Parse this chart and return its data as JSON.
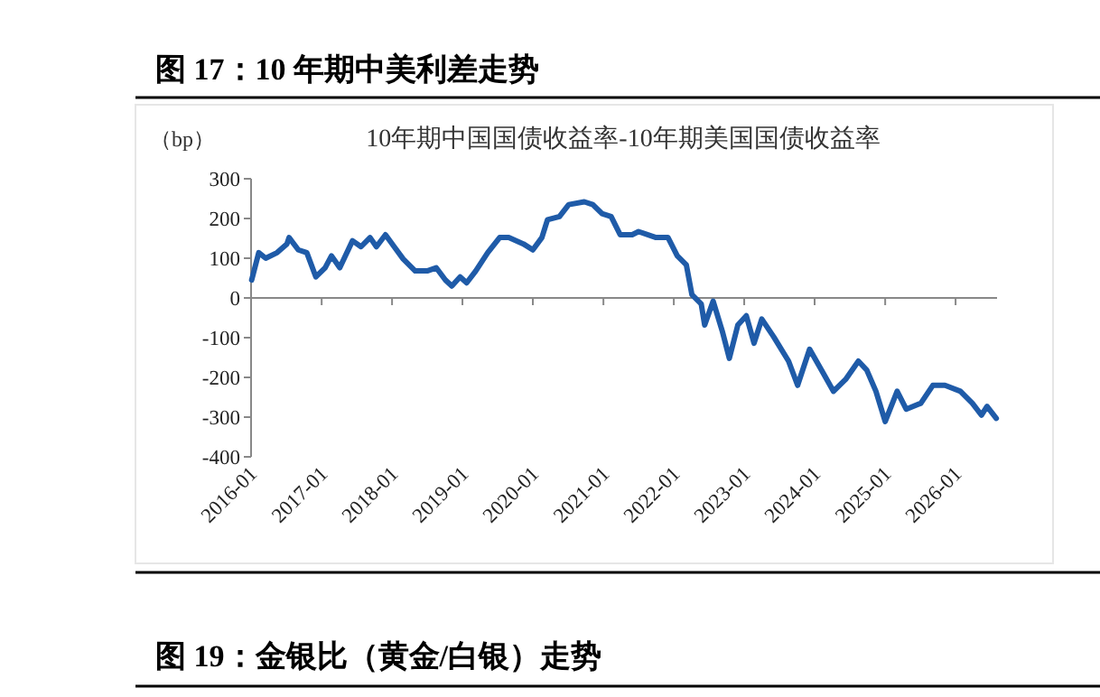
{
  "chart_data": {
    "type": "line",
    "title": "图 17：10 年期中美利差走势",
    "subtitle": "10年期中国国债收益率-10年期美国国债收益率",
    "ylabel": "（bp）",
    "annotations": [
      "图 19：金银比（黄金/白银）走势"
    ],
    "color": "#1f5ba8",
    "x": [
      "2016-01-04",
      "2016-02-10",
      "2016-03-17",
      "2016-05-15",
      "2016-07-05",
      "2016-07-16",
      "2016-09-02",
      "2016-10-16",
      "2016-12-02",
      "2017-01-19",
      "2017-02-21",
      "2017-04-05",
      "2017-06-10",
      "2017-07-24",
      "2017-09-09",
      "2017-10-12",
      "2017-11-28",
      "2018-01-12",
      "2018-02-28",
      "2018-05-01",
      "2018-07-02",
      "2018-08-18",
      "2018-10-05",
      "2018-11-07",
      "2018-12-20",
      "2019-01-23",
      "2019-03-11",
      "2019-05-12",
      "2019-07-13",
      "2019-08-29",
      "2019-11-13",
      "2020-01-01",
      "2020-02-17",
      "2020-03-17",
      "2020-05-18",
      "2020-07-05",
      "2020-09-24",
      "2020-11-07",
      "2020-12-25",
      "2021-02-10",
      "2021-03-29",
      "2021-05-30",
      "2021-07-02",
      "2021-10-01",
      "2021-12-02",
      "2022-01-19",
      "2022-03-07",
      "2022-04-05",
      "2022-05-23",
      "2022-06-10",
      "2022-07-24",
      "2022-09-09",
      "2022-10-16",
      "2022-11-29",
      "2023-01-12",
      "2023-02-21",
      "2023-04-02",
      "2023-06-03",
      "2023-08-19",
      "2023-10-05",
      "2023-12-06",
      "2024-02-06",
      "2024-04-08",
      "2024-06-10",
      "2024-08-15",
      "2024-09-28",
      "2024-11-14",
      "2025-01-01",
      "2025-03-04",
      "2025-04-20",
      "2025-07-05",
      "2025-09-05",
      "2025-11-07",
      "2026-01-26",
      "2026-03-29",
      "2026-05-15",
      "2026-06-13",
      "2026-07-31"
    ],
    "values": [
      45,
      114,
      100,
      114,
      136,
      152,
      121,
      114,
      53,
      76,
      106,
      76,
      144,
      129,
      152,
      129,
      159,
      129,
      98,
      68,
      68,
      76,
      45,
      30,
      53,
      38,
      68,
      114,
      152,
      152,
      136,
      121,
      152,
      197,
      205,
      235,
      242,
      235,
      212,
      205,
      159,
      159,
      167,
      152,
      152,
      106,
      83,
      8,
      -15,
      -68,
      -8,
      -83,
      -152,
      -68,
      -45,
      -114,
      -53,
      -98,
      -159,
      -220,
      -129,
      -182,
      -235,
      -205,
      -159,
      -182,
      -235,
      -311,
      -235,
      -280,
      -265,
      -220,
      -220,
      -235,
      -265,
      -295,
      -273,
      -303
    ],
    "xlim": [
      "2016-01-01",
      "2026-08-04"
    ],
    "xticks": [
      {
        "value": "2016-01",
        "label": "2016-01"
      },
      {
        "value": "2017-01",
        "label": "2017-01"
      },
      {
        "value": "2018-01",
        "label": "2018-01"
      },
      {
        "value": "2019-01",
        "label": "2019-01"
      },
      {
        "value": "2020-01",
        "label": "2020-01"
      },
      {
        "value": "2021-01",
        "label": "2021-01"
      },
      {
        "value": "2022-01",
        "label": "2022-01"
      },
      {
        "value": "2023-01",
        "label": "2023-01"
      },
      {
        "value": "2024-01",
        "label": "2024-01"
      },
      {
        "value": "2025-01",
        "label": "2025-01"
      },
      {
        "value": "2026-01",
        "label": "2026-01"
      }
    ],
    "ylim": [
      -400,
      300
    ],
    "yticks": [
      -400,
      -300,
      -200,
      -100,
      0,
      100,
      200,
      300
    ]
  }
}
